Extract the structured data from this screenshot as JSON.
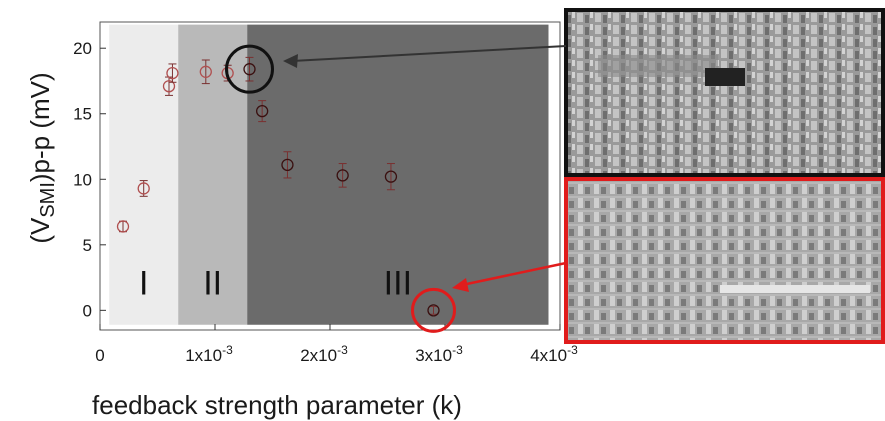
{
  "chart_data": {
    "type": "scatter",
    "xlabel": "feedback strength parameter (k)",
    "ylabel_main": "(V",
    "ylabel_sub": "SMI",
    "ylabel_tail": ")p-p (mV)",
    "xlim": [
      0,
      0.004
    ],
    "ylim": [
      -1.5,
      22
    ],
    "x_ticks": [
      {
        "value": 0,
        "label": "0",
        "exp": ""
      },
      {
        "value": 0.001,
        "label": "1x10",
        "exp": "-3"
      },
      {
        "value": 0.002,
        "label": "2x10",
        "exp": "-3"
      },
      {
        "value": 0.003,
        "label": "3x10",
        "exp": "-3"
      },
      {
        "value": 0.004,
        "label": "4x10",
        "exp": "-3"
      }
    ],
    "y_ticks": [
      {
        "value": 0,
        "label": "0"
      },
      {
        "value": 5,
        "label": "5"
      },
      {
        "value": 10,
        "label": "10"
      },
      {
        "value": 15,
        "label": "15"
      },
      {
        "value": 20,
        "label": "20"
      }
    ],
    "regions": [
      {
        "label": "I",
        "x_start": 8e-05,
        "x_end": 0.00068,
        "y_top": 21.8,
        "color": "#ececec",
        "label_y": 1.2
      },
      {
        "label": "II",
        "x_start": 0.00068,
        "x_end": 0.00128,
        "y_top": 21.8,
        "color": "#b9b9b9",
        "label_y": 1.2
      },
      {
        "label": "III",
        "x_start": 0.00128,
        "x_end": 0.0039,
        "y_top": 21.8,
        "color": "#6b6b6b",
        "label_y": 1.2
      }
    ],
    "series": [
      {
        "x": [
          0.0002,
          0.00038,
          0.0006,
          0.00063,
          0.00092,
          0.00111,
          0.0013,
          0.00141,
          0.00163,
          0.00211,
          0.00253,
          0.0029
        ],
        "y": [
          6.4,
          9.3,
          17.1,
          18.1,
          18.2,
          18.1,
          18.4,
          15.2,
          11.1,
          10.3,
          10.2,
          0.0
        ],
        "err": [
          0.4,
          0.6,
          0.7,
          0.7,
          0.9,
          0.6,
          0.9,
          0.8,
          1.0,
          0.9,
          1.0,
          0.3
        ]
      }
    ],
    "highlights": [
      {
        "x": 0.0013,
        "y": 18.4,
        "color": "#111111",
        "points_to": "top-inset"
      },
      {
        "x": 0.0029,
        "y": 0.0,
        "color": "#e01c1c",
        "points_to": "bottom-inset"
      }
    ],
    "grid": false,
    "legend": "none"
  },
  "insets": [
    {
      "name": "top-inset",
      "border_color": "#111111"
    },
    {
      "name": "bottom-inset",
      "border_color": "#e01c1c"
    }
  ]
}
